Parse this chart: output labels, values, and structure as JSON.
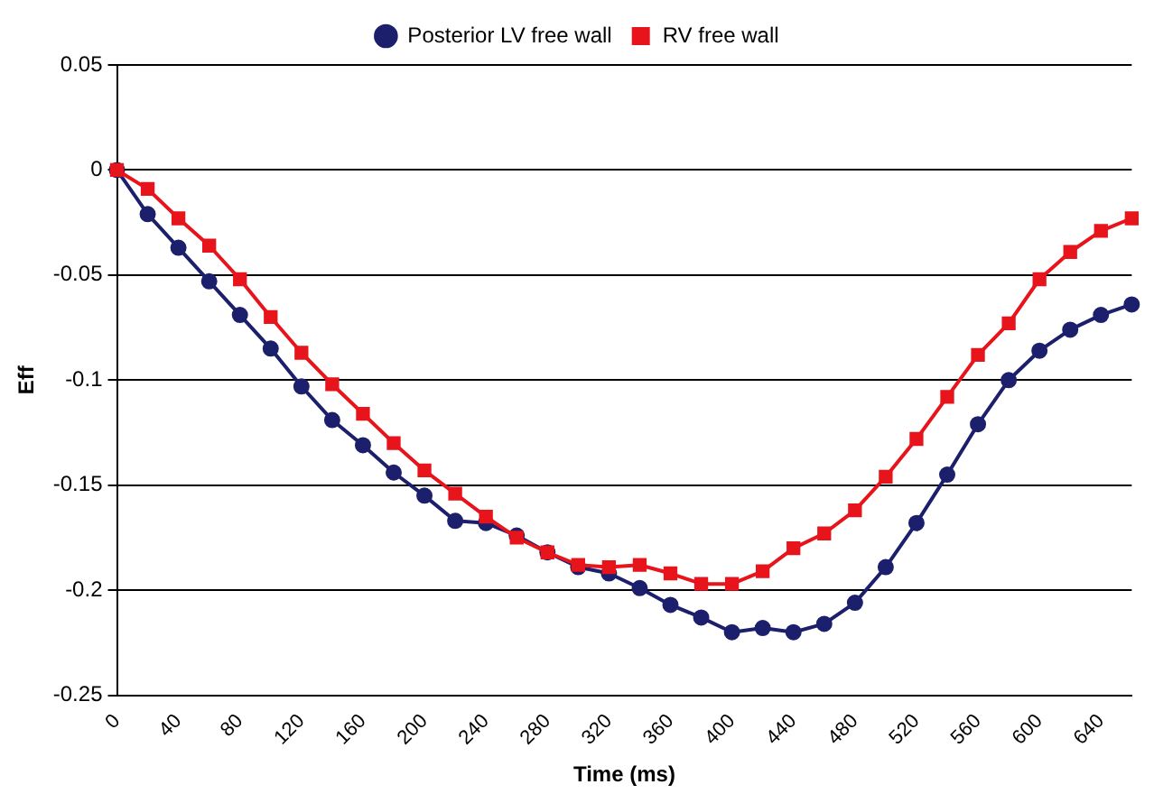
{
  "chart_data": {
    "type": "line",
    "xlabel": "Time (ms)",
    "ylabel": "Eff",
    "categories": [
      "0",
      null,
      "40",
      null,
      "80",
      null,
      "120",
      null,
      "160",
      null,
      "200",
      null,
      "240",
      null,
      "280",
      null,
      "320",
      null,
      "360",
      null,
      "400",
      null,
      "440",
      null,
      "480",
      null,
      "520",
      null,
      "560",
      null,
      "600",
      null,
      "640",
      null
    ],
    "series": [
      {
        "name": "Posterior LV free wall",
        "color": "#1c1f6b",
        "marker": "circle",
        "values": [
          0,
          -0.021,
          -0.037,
          -0.053,
          -0.069,
          -0.085,
          -0.103,
          -0.119,
          -0.131,
          -0.144,
          -0.155,
          -0.167,
          -0.168,
          -0.174,
          -0.182,
          -0.189,
          -0.192,
          -0.199,
          -0.207,
          -0.213,
          -0.22,
          -0.218,
          -0.22,
          -0.216,
          -0.206,
          -0.189,
          -0.168,
          -0.145,
          -0.121,
          -0.1,
          -0.086,
          -0.076,
          -0.069,
          -0.064
        ]
      },
      {
        "name": "RV free wall",
        "color": "#e8141c",
        "marker": "square",
        "values": [
          0,
          -0.009,
          -0.023,
          -0.036,
          -0.052,
          -0.07,
          -0.087,
          -0.102,
          -0.116,
          -0.13,
          -0.143,
          -0.154,
          -0.165,
          -0.175,
          -0.182,
          -0.188,
          -0.189,
          -0.188,
          -0.192,
          -0.197,
          -0.197,
          -0.191,
          -0.18,
          -0.173,
          -0.162,
          -0.146,
          -0.128,
          -0.108,
          -0.088,
          -0.073,
          -0.052,
          -0.039,
          -0.029,
          -0.023
        ]
      }
    ],
    "ylim": [
      -0.25,
      0.05
    ],
    "yticks": [
      -0.25,
      -0.2,
      -0.15,
      -0.1,
      -0.05,
      0,
      0.05
    ],
    "grid": "y",
    "legend": "top"
  }
}
